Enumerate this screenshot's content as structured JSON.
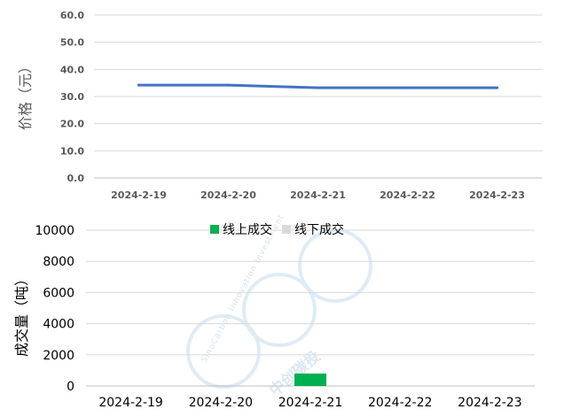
{
  "chart_data": [
    {
      "type": "line",
      "x": [
        "2024-2-19",
        "2024-2-20",
        "2024-2-21",
        "2024-2-22",
        "2024-2-23"
      ],
      "series": [
        {
          "values": [
            34.2,
            34.2,
            33.2,
            33.2,
            33.2
          ]
        }
      ],
      "ylabel": "价格（元）",
      "ylim": [
        0,
        60
      ],
      "yticks": [
        "0.0",
        "10.0",
        "20.0",
        "30.0",
        "40.0",
        "50.0",
        "60.0"
      ],
      "grid": true,
      "colors": [
        "#4472c4"
      ]
    },
    {
      "type": "bar",
      "categories": [
        "2024-2-19",
        "2024-2-20",
        "2024-2-21",
        "2024-2-22",
        "2024-2-23"
      ],
      "series": [
        {
          "name": "线上成交",
          "values": [
            0,
            0,
            800,
            0,
            0
          ]
        },
        {
          "name": "线下成交",
          "values": [
            0,
            0,
            0,
            0,
            0
          ]
        }
      ],
      "ylabel": "成交量（吨）",
      "ylim": [
        0,
        10000
      ],
      "yticks": [
        "0",
        "2000",
        "4000",
        "6000",
        "8000",
        "10000"
      ],
      "grid": true,
      "legend_position": "top",
      "colors": [
        "#00b050",
        "#d9d9d9"
      ]
    }
  ],
  "watermark": {
    "text_en": "SinoCarbon Innovation Investment",
    "text_cn": "中创碳投"
  }
}
